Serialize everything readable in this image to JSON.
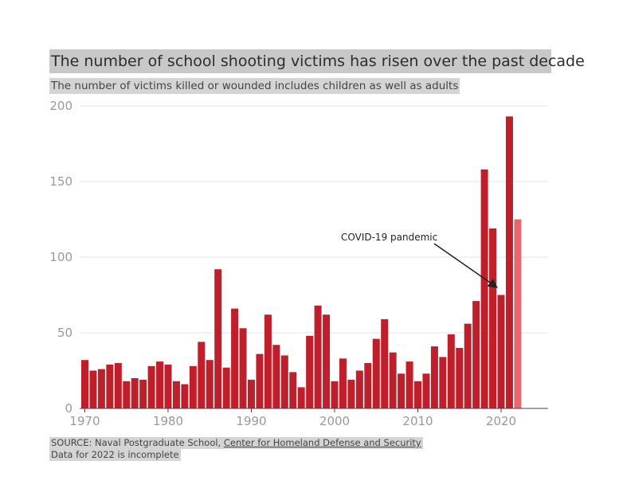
{
  "title": "The number of school shooting victims has risen over the past decade",
  "subtitle": "The number of victims killed or wounded includes children as well as adults",
  "source_prefix": "SOURCE: Naval Postgraduate School, ",
  "source_link": "Center for Homeland Defense and Security",
  "note": "Data for 2022 is incomplete",
  "colors": {
    "bar": "#bf1f2a",
    "bar_incomplete": "#e8666d",
    "grid": "#e6e6e6",
    "axis_text": "#999999"
  },
  "chart_data": {
    "type": "bar",
    "title": "The number of school shooting victims has risen over the past decade",
    "x": [
      1970,
      1971,
      1972,
      1973,
      1974,
      1975,
      1976,
      1977,
      1978,
      1979,
      1980,
      1981,
      1982,
      1983,
      1984,
      1985,
      1986,
      1987,
      1988,
      1989,
      1990,
      1991,
      1992,
      1993,
      1994,
      1995,
      1996,
      1997,
      1998,
      1999,
      2000,
      2001,
      2002,
      2003,
      2004,
      2005,
      2006,
      2007,
      2008,
      2009,
      2010,
      2011,
      2012,
      2013,
      2014,
      2015,
      2016,
      2017,
      2018,
      2019,
      2020,
      2021,
      2022
    ],
    "values": [
      32,
      25,
      26,
      29,
      30,
      18,
      20,
      19,
      28,
      31,
      29,
      18,
      16,
      28,
      44,
      32,
      92,
      27,
      66,
      53,
      19,
      36,
      62,
      42,
      35,
      24,
      14,
      48,
      68,
      62,
      18,
      33,
      19,
      25,
      30,
      46,
      59,
      37,
      23,
      31,
      18,
      23,
      41,
      34,
      49,
      40,
      56,
      71,
      158,
      119,
      75,
      193,
      125
    ],
    "incomplete_year": 2022,
    "ylim": [
      0,
      200
    ],
    "yticks": [
      0,
      50,
      100,
      150,
      200
    ],
    "xticks": [
      1970,
      1980,
      1990,
      2000,
      2010,
      2020
    ],
    "grid": true,
    "annotation": {
      "text": "COVID-19 pandemic",
      "target_year": 2020
    }
  }
}
